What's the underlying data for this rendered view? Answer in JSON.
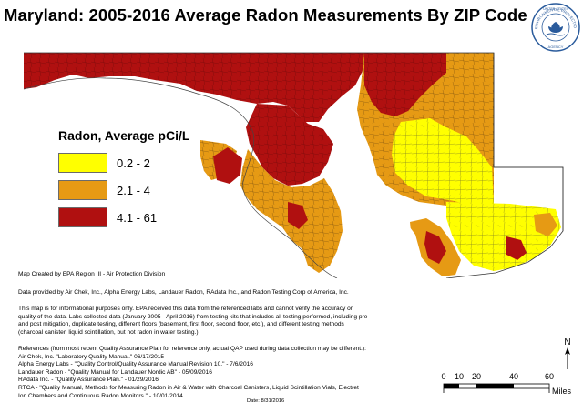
{
  "map": {
    "title": "Maryland: 2005-2016 Average Radon Measurements By ZIP Code",
    "seal_text": [
      "UNITED STATES",
      "ENVIRONMENTAL PROTECTION",
      "AGENCY"
    ],
    "legend": {
      "title": "Radon, Average pCi/L",
      "items": [
        {
          "label": "0.2 - 2",
          "color": "#ffff00"
        },
        {
          "label": "2.1 - 4",
          "color": "#e69a14"
        },
        {
          "label": "4.1 - 61",
          "color": "#b01010"
        }
      ]
    },
    "north_label": "N",
    "scale": {
      "ticks": [
        "0",
        "10",
        "20",
        "40",
        "60"
      ],
      "unit": "Miles"
    }
  },
  "notes": {
    "created_by": "Map Created by EPA Region III - Air Protection Division",
    "data_provided": "Data provided by Air Chek, Inc., Alpha Energy Labs, Landauer Radon, RAdata Inc., and Radon Testing Corp of America, Inc.",
    "disclaimer": [
      "This map is for informational purposes only. EPA received this data from the referenced labs and cannot verify the accuracy or",
      "quality of the data. Labs collected data (January 2005 - April 2016) from testing kits that includes all testing performed, including pre",
      "and post mitigation, duplicate testing, different floors (basement, first floor, second floor, etc.), and different testing methods",
      "(charcoal canister, liquid scintillation, but not radon in water testing.)"
    ],
    "references": [
      "References (from most recent Quality Assurance Plan for reference only, actual QAP used during data collection may be different.):",
      "Air Chek, Inc. \"Laboratory Quality Manual.\"  06/17/2015",
      "Alpha Energy Labs - \"Quality Control/Quality Assurance Manual Revision 10.\"  - 7/6/2016",
      "Landauer Radon - \"Quality Manual for Landauer Nordic AB\" - 05/09/2016",
      "RAdata Inc. - \"Quality Assurance Plan.\" - 01/29/2016",
      "RTCA - \"Quality Manual, Methods for Measuring Radon in Air & Water with Charcoal Canisters, Liquid Scintillation Vials, Electret",
      "Ion Chambers and Continuous Radon Monitors.\" - 10/01/2014"
    ],
    "date": "Date: 8/31/2016"
  }
}
